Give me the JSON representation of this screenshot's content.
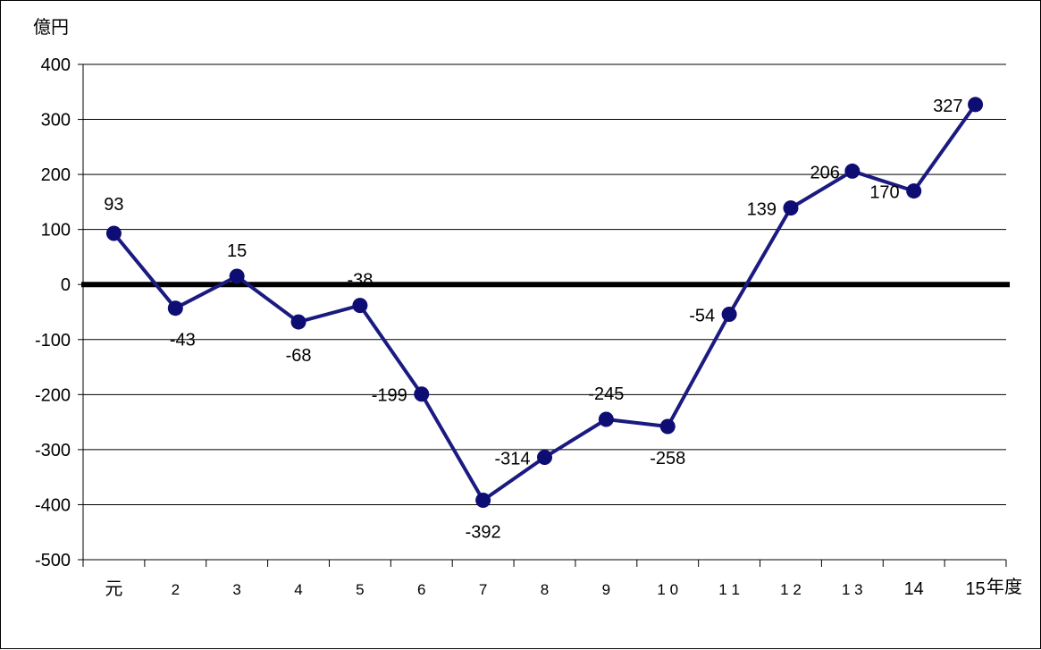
{
  "chart_data": {
    "type": "line",
    "y_unit_label": "億円",
    "x_unit_label": "年度",
    "categories": [
      "元",
      "2",
      "3",
      "4",
      "5",
      "6",
      "7",
      "8",
      "9",
      "1 0",
      "1 1",
      "1 2",
      "1 3",
      "14",
      "15"
    ],
    "values": [
      93,
      -43,
      15,
      -68,
      -38,
      -199,
      -392,
      -314,
      -245,
      -258,
      -54,
      139,
      206,
      170,
      327
    ],
    "data_labels": [
      "93",
      "-43",
      "15",
      "-68",
      "-38",
      "-199",
      "-392",
      "-314",
      "-245",
      "-258",
      "-54",
      "139",
      "206",
      "170",
      "327"
    ],
    "ylim": [
      -500,
      400
    ],
    "yticks": [
      400,
      300,
      200,
      100,
      0,
      -100,
      -200,
      -300,
      -400,
      -500
    ],
    "ytick_labels": [
      "400",
      "300",
      "200",
      "100",
      "0",
      "-100",
      "-200",
      "-300",
      "-400",
      "-500"
    ],
    "grid": true,
    "zero_line": true,
    "colors": {
      "series": "#1a1a80",
      "marker": "#0d0d73",
      "grid": "#000000",
      "zero_line": "#000000"
    }
  }
}
